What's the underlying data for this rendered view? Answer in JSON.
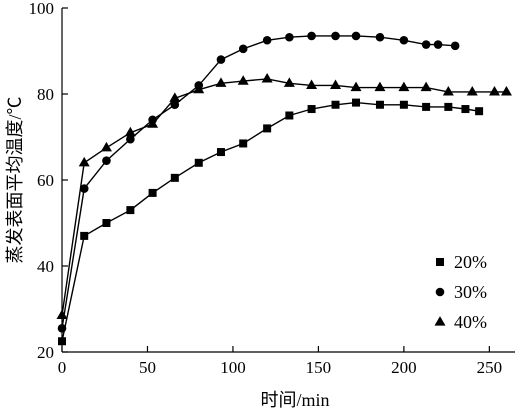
{
  "chart_data": {
    "type": "line",
    "xlabel": "时间/min",
    "ylabel": "蒸发表面平均温度/℃",
    "xlim": [
      0,
      265
    ],
    "ylim": [
      20,
      100
    ],
    "xticks": [
      0,
      50,
      100,
      150,
      200,
      250
    ],
    "yticks": [
      20,
      40,
      60,
      80,
      100
    ],
    "grid": false,
    "legend_position": "bottom-right",
    "series": [
      {
        "name": "20%",
        "marker": "square",
        "x": [
          0,
          13,
          26,
          40,
          53,
          66,
          80,
          93,
          106,
          120,
          133,
          146,
          160,
          172,
          186,
          200,
          213,
          226,
          236,
          244
        ],
        "y": [
          22.5,
          47,
          50,
          53,
          57,
          60.5,
          64,
          66.5,
          68.5,
          72,
          75,
          76.5,
          77.5,
          78,
          77.5,
          77.5,
          77,
          77,
          76.5,
          76
        ]
      },
      {
        "name": "30%",
        "marker": "circle",
        "x": [
          0,
          13,
          26,
          40,
          53,
          66,
          80,
          93,
          106,
          120,
          133,
          146,
          160,
          172,
          186,
          200,
          213,
          220,
          230
        ],
        "y": [
          25.5,
          58,
          64.5,
          69.5,
          74,
          77.5,
          82,
          88,
          90.5,
          92.5,
          93.2,
          93.5,
          93.5,
          93.5,
          93.2,
          92.5,
          91.5,
          91.5,
          91.2
        ]
      },
      {
        "name": "40%",
        "marker": "triangle",
        "x": [
          0,
          13,
          26,
          40,
          53,
          66,
          80,
          93,
          106,
          120,
          133,
          146,
          160,
          172,
          186,
          200,
          213,
          226,
          240,
          253,
          260
        ],
        "y": [
          28.5,
          64,
          67.5,
          71,
          73,
          79,
          81,
          82.5,
          83,
          83.5,
          82.5,
          82,
          82,
          81.5,
          81.5,
          81.5,
          81.5,
          80.5,
          80.5,
          80.5,
          80.5
        ]
      }
    ]
  }
}
